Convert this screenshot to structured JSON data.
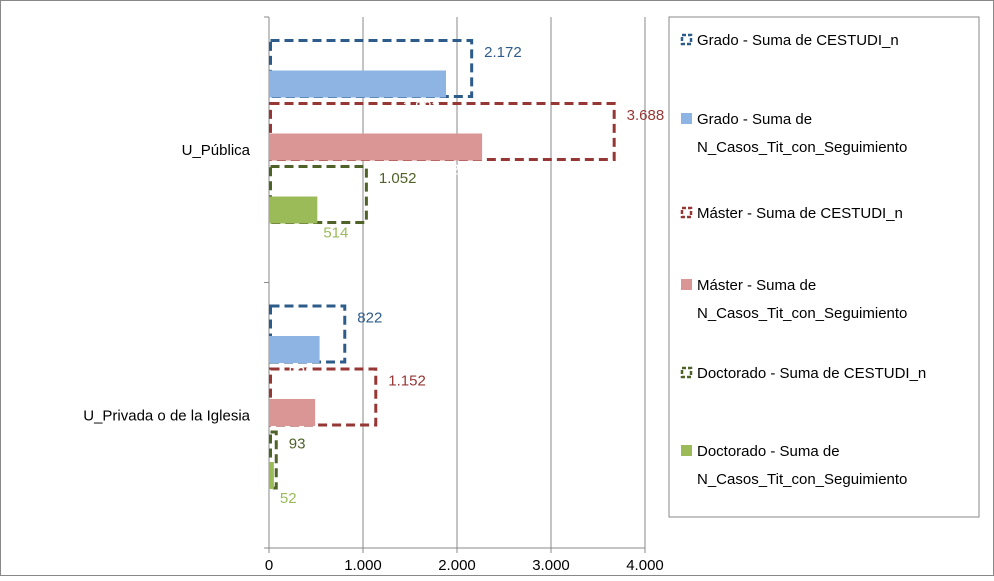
{
  "chart_data": {
    "type": "bar",
    "orientation": "horizontal",
    "categories": [
      "U_Pública",
      "U_Privada o de la Iglesia"
    ],
    "series": [
      {
        "name": "Grado - Suma de CESTUDI_n",
        "style": "dashed-outline",
        "color": "#2E5C8A",
        "label_color": "#2E5C8A",
        "values": [
          2172,
          822
        ],
        "labels": [
          "2.172",
          "822"
        ]
      },
      {
        "name": "Grado - Suma de N_Casos_Tit_con_Seguimiento",
        "style": "filled",
        "color": "#8DB4E2",
        "label_color": "#FFFFFF",
        "values": [
          1883,
          538
        ],
        "labels": [
          "1.883",
          "538"
        ]
      },
      {
        "name": "Máster - Suma de CESTUDI_n",
        "style": "dashed-outline",
        "color": "#953735",
        "label_color": "#953735",
        "values": [
          3688,
          1152
        ],
        "labels": [
          "3.688",
          "1.152"
        ]
      },
      {
        "name": "Máster - Suma de N_Casos_Tit_con_Seguimiento",
        "style": "filled",
        "color": "#DA9694",
        "label_color": "#FFFFFF",
        "values": [
          2267,
          491
        ],
        "labels": [
          "2.267",
          "491"
        ]
      },
      {
        "name": "Doctorado - Suma de CESTUDI_n",
        "style": "dashed-outline",
        "color": "#4F6228",
        "label_color": "#4F6228",
        "values": [
          1052,
          93
        ],
        "labels": [
          "1.052",
          "93"
        ]
      },
      {
        "name": "Doctorado - Suma de N_Casos_Tit_con_Seguimiento",
        "style": "filled",
        "color": "#9BBB59",
        "label_color": "#9BBB59",
        "values": [
          514,
          52
        ],
        "labels": [
          "514",
          "52"
        ]
      }
    ],
    "legend": {
      "position": "right",
      "entries": [
        [
          "Grado - Suma de CESTUDI_n"
        ],
        [
          "Grado - Suma de",
          "N_Casos_Tit_con_Seguimiento"
        ],
        [
          "Máster - Suma de CESTUDI_n"
        ],
        [
          "Máster - Suma de",
          "N_Casos_Tit_con_Seguimiento"
        ],
        [
          "Doctorado - Suma de CESTUDI_n"
        ],
        [
          "Doctorado - Suma de",
          "N_Casos_Tit_con_Seguimiento"
        ]
      ]
    },
    "x_ticks": [
      0,
      1000,
      2000,
      3000,
      4000
    ],
    "x_tick_labels": [
      "0",
      "1.000",
      "2.000",
      "3.000",
      "4.000"
    ],
    "xlim": [
      0,
      4000
    ],
    "grid": "vertical",
    "title": "",
    "xlabel": "",
    "ylabel": ""
  }
}
